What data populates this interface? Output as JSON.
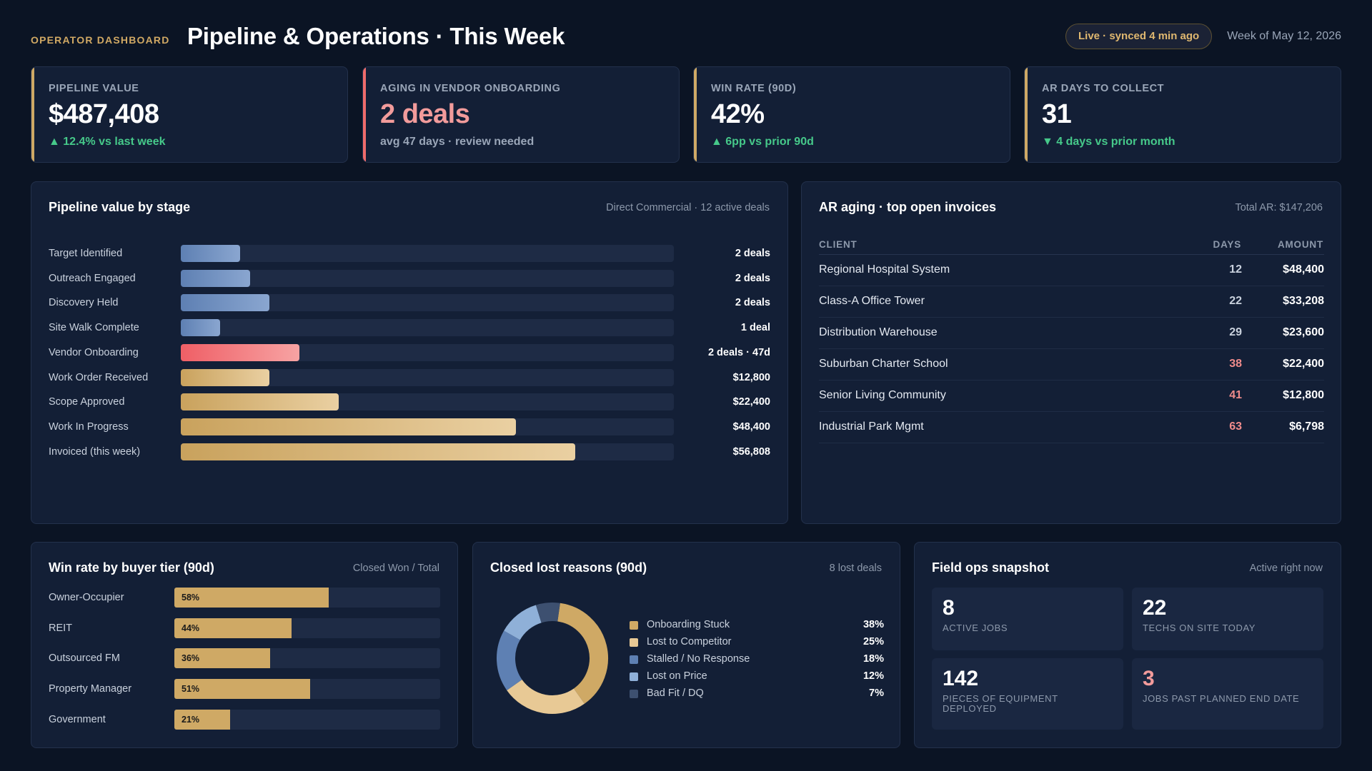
{
  "header": {
    "kicker": "OPERATOR DASHBOARD",
    "title": "Pipeline & Operations · This Week",
    "live_status": "Live · synced 4 min ago",
    "week": "Week of May 12, 2026"
  },
  "kpis": [
    {
      "label": "PIPELINE VALUE",
      "value": "$487,408",
      "sub": "▲ 12.4% vs last week",
      "accent": "#cfa965",
      "value_color": "#ffffff",
      "sub_color": "#46c98a"
    },
    {
      "label": "AGING IN VENDOR ONBOARDING",
      "value": "2 deals",
      "sub": "avg 47 days · review needed",
      "accent": "#ef6b6b",
      "value_color": "#f29b9b",
      "sub_color": "#9aa6b8"
    },
    {
      "label": "WIN RATE (90D)",
      "value": "42%",
      "sub": "▲ 6pp vs prior 90d",
      "accent": "#cfa965",
      "value_color": "#ffffff",
      "sub_color": "#46c98a"
    },
    {
      "label": "AR DAYS TO COLLECT",
      "value": "31",
      "sub": "▼ 4 days vs prior month",
      "accent": "#cfa965",
      "value_color": "#ffffff",
      "sub_color": "#46c98a"
    }
  ],
  "stage_panel": {
    "title": "Pipeline value by stage",
    "meta": "Direct Commercial · 12 active deals"
  },
  "chart_data": [
    {
      "type": "bar",
      "orientation": "horizontal",
      "title": "Pipeline value by stage",
      "categories": [
        "Target Identified",
        "Outreach Engaged",
        "Discovery Held",
        "Site Walk Complete",
        "Vendor Onboarding",
        "Work Order Received",
        "Scope Approved",
        "Work In Progress",
        "Invoiced (this week)"
      ],
      "value_labels": [
        "2 deals",
        "2 deals",
        "2 deals",
        "1 deal",
        "2 deals · 47d",
        "$12,800",
        "$22,400",
        "$48,400",
        "$56,808"
      ],
      "fill_fraction": [
        0.12,
        0.14,
        0.18,
        0.08,
        0.24,
        0.18,
        0.32,
        0.68,
        0.8
      ],
      "bar_colors": [
        "blue",
        "blue",
        "blue",
        "blue",
        "red",
        "gold",
        "gold",
        "gold",
        "gold"
      ]
    },
    {
      "type": "bar",
      "orientation": "horizontal",
      "title": "Win rate by buyer tier (90d)",
      "categories": [
        "Owner-Occupier",
        "REIT",
        "Outsourced FM",
        "Property Manager",
        "Government"
      ],
      "values": [
        58,
        44,
        36,
        51,
        21
      ],
      "ylim": [
        0,
        100
      ]
    },
    {
      "type": "pie",
      "style": "donut",
      "title": "Closed lost reasons (90d)",
      "categories": [
        "Onboarding Stuck",
        "Lost to Competitor",
        "Stalled / No Response",
        "Lost on Price",
        "Bad Fit / DQ"
      ],
      "values": [
        38,
        25,
        18,
        12,
        7
      ],
      "colors": [
        "#cfa965",
        "#e8c995",
        "#5e80b3",
        "#8fb0d8",
        "#3d5070"
      ]
    }
  ],
  "ar_panel": {
    "title": "AR aging · top open invoices",
    "meta": "Total AR: $147,206",
    "columns": [
      "CLIENT",
      "DAYS",
      "AMOUNT"
    ],
    "rows": [
      {
        "client": "Regional Hospital System",
        "days": "12",
        "amount": "$48,400",
        "overdue": false
      },
      {
        "client": "Class-A Office Tower",
        "days": "22",
        "amount": "$33,208",
        "overdue": false
      },
      {
        "client": "Distribution Warehouse",
        "days": "29",
        "amount": "$23,600",
        "overdue": false
      },
      {
        "client": "Suburban Charter School",
        "days": "38",
        "amount": "$22,400",
        "overdue": true
      },
      {
        "client": "Senior Living Community",
        "days": "41",
        "amount": "$12,800",
        "overdue": true
      },
      {
        "client": "Industrial Park Mgmt",
        "days": "63",
        "amount": "$6,798",
        "overdue": true
      }
    ]
  },
  "win_panel": {
    "title": "Win rate by buyer tier (90d)",
    "meta": "Closed Won / Total",
    "rows": [
      {
        "label": "Owner-Occupier",
        "pct": "58%"
      },
      {
        "label": "REIT",
        "pct": "44%"
      },
      {
        "label": "Outsourced FM",
        "pct": "36%"
      },
      {
        "label": "Property Manager",
        "pct": "51%"
      },
      {
        "label": "Government",
        "pct": "21%"
      }
    ]
  },
  "lost_panel": {
    "title": "Closed lost reasons (90d)",
    "meta": "8 lost deals",
    "legend": [
      {
        "name": "Onboarding Stuck",
        "pct": "38%"
      },
      {
        "name": "Lost to Competitor",
        "pct": "25%"
      },
      {
        "name": "Stalled / No Response",
        "pct": "18%"
      },
      {
        "name": "Lost on Price",
        "pct": "12%"
      },
      {
        "name": "Bad Fit / DQ",
        "pct": "7%"
      }
    ]
  },
  "ops_panel": {
    "title": "Field ops snapshot",
    "meta": "Active right now",
    "tiles": [
      {
        "num": "8",
        "caption": "ACTIVE JOBS",
        "color": "#ffffff"
      },
      {
        "num": "22",
        "caption": "TECHS ON SITE TODAY",
        "color": "#ffffff"
      },
      {
        "num": "142",
        "caption": "PIECES OF EQUIPMENT DEPLOYED",
        "color": "#ffffff"
      },
      {
        "num": "3",
        "caption": "JOBS PAST PLANNED END DATE",
        "color": "#f29b9b"
      }
    ]
  }
}
